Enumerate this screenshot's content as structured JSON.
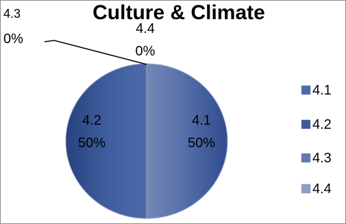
{
  "chart_data": {
    "type": "pie",
    "title": "Culture & Climate",
    "categories": [
      "4.1",
      "4.2",
      "4.3",
      "4.4"
    ],
    "values": [
      50,
      50,
      0,
      0
    ],
    "data_labels": [
      {
        "category": "4.1",
        "percent": "50%"
      },
      {
        "category": "4.2",
        "percent": "50%"
      },
      {
        "category": "4.3",
        "percent": "0%"
      },
      {
        "category": "4.4",
        "percent": "0%"
      }
    ],
    "colors": [
      "#4f6aa8",
      "#3d5a9c",
      "#5b78b4",
      "#8e9fc4"
    ],
    "legend_position": "right"
  }
}
